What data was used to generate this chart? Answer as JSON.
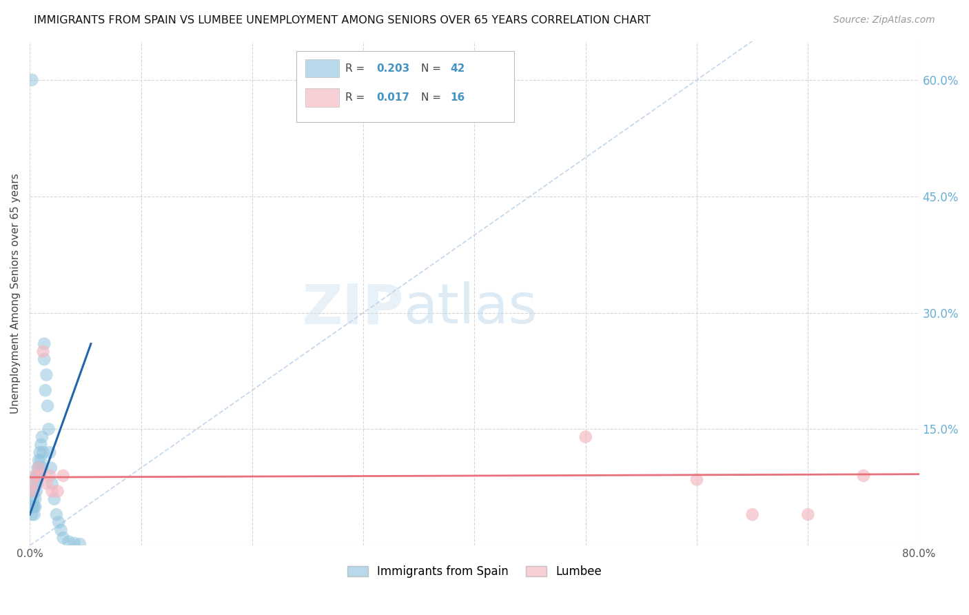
{
  "title": "IMMIGRANTS FROM SPAIN VS LUMBEE UNEMPLOYMENT AMONG SENIORS OVER 65 YEARS CORRELATION CHART",
  "source": "Source: ZipAtlas.com",
  "ylabel": "Unemployment Among Seniors over 65 years",
  "legend_label_blue": "Immigrants from Spain",
  "legend_label_pink": "Lumbee",
  "R_blue": 0.203,
  "N_blue": 42,
  "R_pink": 0.017,
  "N_pink": 16,
  "xlim": [
    0,
    0.8
  ],
  "ylim": [
    0,
    0.65
  ],
  "color_blue": "#92c5de",
  "color_pink": "#f4b8c1",
  "color_blue_line": "#2166ac",
  "color_pink_line": "#e8707a",
  "color_diag": "#b8cfe8",
  "watermark_zip": "ZIP",
  "watermark_atlas": "atlas",
  "background_color": "#ffffff",
  "grid_color": "#cccccc",
  "blue_scatter_x": [
    0.002,
    0.002,
    0.003,
    0.003,
    0.004,
    0.004,
    0.004,
    0.005,
    0.005,
    0.005,
    0.006,
    0.006,
    0.007,
    0.007,
    0.007,
    0.008,
    0.008,
    0.009,
    0.009,
    0.01,
    0.01,
    0.011,
    0.011,
    0.012,
    0.013,
    0.013,
    0.014,
    0.015,
    0.016,
    0.017,
    0.018,
    0.019,
    0.02,
    0.022,
    0.024,
    0.026,
    0.028,
    0.03,
    0.035,
    0.04,
    0.045,
    0.002
  ],
  "blue_scatter_y": [
    0.05,
    0.04,
    0.06,
    0.05,
    0.07,
    0.05,
    0.04,
    0.08,
    0.06,
    0.05,
    0.09,
    0.07,
    0.1,
    0.09,
    0.08,
    0.11,
    0.1,
    0.12,
    0.09,
    0.13,
    0.11,
    0.14,
    0.1,
    0.12,
    0.26,
    0.24,
    0.2,
    0.22,
    0.18,
    0.15,
    0.12,
    0.1,
    0.08,
    0.06,
    0.04,
    0.03,
    0.02,
    0.01,
    0.005,
    0.003,
    0.002,
    0.6
  ],
  "pink_scatter_x": [
    0.002,
    0.003,
    0.005,
    0.008,
    0.01,
    0.012,
    0.015,
    0.018,
    0.02,
    0.025,
    0.03,
    0.5,
    0.6,
    0.65,
    0.7,
    0.75
  ],
  "pink_scatter_y": [
    0.08,
    0.07,
    0.09,
    0.1,
    0.09,
    0.25,
    0.08,
    0.09,
    0.07,
    0.07,
    0.09,
    0.14,
    0.085,
    0.04,
    0.04,
    0.09
  ],
  "blue_line_x0": 0.0,
  "blue_line_x1": 0.055,
  "blue_line_y0": 0.04,
  "blue_line_y1": 0.26,
  "pink_line_x0": 0.0,
  "pink_line_x1": 0.8,
  "pink_line_y0": 0.088,
  "pink_line_y1": 0.092
}
